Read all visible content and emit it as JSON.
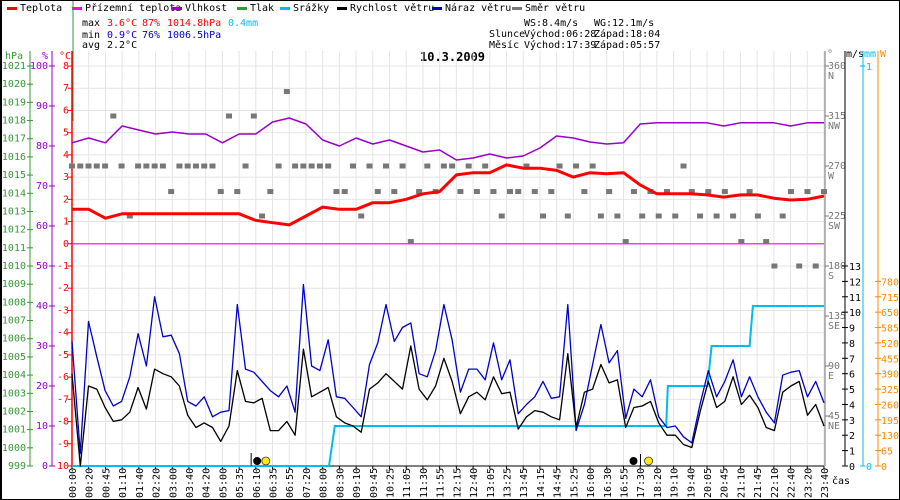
{
  "legend": [
    {
      "label": "Teplota",
      "color": "#ff0000"
    },
    {
      "label": "Přízemní teplota",
      "color": "#ff00ff"
    },
    {
      "label": "Vlhkost",
      "color": "#9900cc"
    },
    {
      "label": "Tlak",
      "color": "#339933"
    },
    {
      "label": "Srážky",
      "color": "#00bbee"
    },
    {
      "label": "Rychlost větru",
      "color": "#000000"
    },
    {
      "label": "Náraz větru",
      "color": "#0000cc"
    },
    {
      "label": "Směr větru",
      "color": "#777777"
    }
  ],
  "stats": {
    "max_label": "max",
    "max": {
      "temp": "3.6°C",
      "hum": "87%",
      "press": "1014.8hPa",
      "rain": "0.4mm"
    },
    "min_label": "min",
    "min": {
      "temp": "0.9°C",
      "hum": "76%",
      "press": "1006.5hPa"
    },
    "avg_label": "avg",
    "avg": {
      "temp": "2.2°C"
    }
  },
  "astro": {
    "ws": "WS:8.4m/s",
    "wg": "WG:12.1m/s",
    "sun_label": "Slunce",
    "sunrise": "Východ:06:28",
    "sunset": "Západ:18:04",
    "moon_label": "Měsíc",
    "moonrise": "Východ:17:39",
    "moonset": "Západ:05:57"
  },
  "chart_data": {
    "type": "line",
    "title": "10.3.2009",
    "xlabel": "čas",
    "x_ticks": [
      "00:00",
      "00:20",
      "00:45",
      "01:10",
      "01:40",
      "02:20",
      "03:00",
      "03:40",
      "04:20",
      "05:00",
      "05:35",
      "06:10",
      "06:35",
      "06:55",
      "07:20",
      "08:00",
      "08:30",
      "09:10",
      "09:45",
      "10:25",
      "11:05",
      "11:30",
      "11:55",
      "12:15",
      "12:40",
      "13:05",
      "13:25",
      "13:45",
      "14:15",
      "14:45",
      "15:25",
      "16:00",
      "16:30",
      "16:55",
      "17:30",
      "18:20",
      "19:10",
      "19:40",
      "20:05",
      "20:45",
      "21:10",
      "21:45",
      "22:10",
      "22:40",
      "23:20",
      "23:40"
    ],
    "axes": {
      "hpa": {
        "unit": "hPa",
        "range": [
          999,
          1021
        ],
        "ticks": [
          999,
          1000,
          1001,
          1002,
          1003,
          1004,
          1005,
          1006,
          1007,
          1008,
          1009,
          1010,
          1011,
          1012,
          1013,
          1014,
          1015,
          1016,
          1017,
          1018,
          1019,
          1020,
          1021
        ]
      },
      "humidity": {
        "unit": "%",
        "range": [
          0,
          100
        ],
        "ticks": [
          0,
          10,
          20,
          30,
          40,
          50,
          60,
          70,
          80,
          90,
          100
        ]
      },
      "temp": {
        "unit": "°C",
        "range": [
          -10,
          8
        ],
        "ticks": [
          -10,
          -9,
          -8,
          -7,
          -6,
          -5,
          -4,
          -3,
          -2,
          -1,
          0,
          1,
          2,
          3,
          4,
          5,
          6,
          7,
          8
        ]
      },
      "direction": {
        "unit": "°",
        "range": [
          0,
          360
        ],
        "ticks": [
          {
            "v": 45,
            "c": "NE"
          },
          {
            "v": 90,
            "c": "E"
          },
          {
            "v": 135,
            "c": "SE"
          },
          {
            "v": 180,
            "c": "S"
          },
          {
            "v": 225,
            "c": "SW"
          },
          {
            "v": 270,
            "c": "W"
          },
          {
            "v": 315,
            "c": "NW"
          },
          {
            "v": 360,
            "c": "N"
          }
        ]
      },
      "wind": {
        "unit": "m/s",
        "range": [
          0,
          13
        ],
        "ticks": [
          0,
          1,
          2,
          3,
          4,
          5,
          6,
          7,
          8,
          9,
          10,
          11,
          12,
          13
        ]
      },
      "rain": {
        "unit": "mm",
        "range": [
          0,
          1
        ],
        "ticks": [
          0,
          1
        ]
      },
      "radiation": {
        "unit": "W",
        "range": [
          0,
          845
        ],
        "ticks": [
          0,
          65,
          130,
          195,
          260,
          325,
          390,
          455,
          520,
          585,
          650,
          715,
          780
        ]
      }
    },
    "series": [
      {
        "name": "Teplota",
        "unit": "°C",
        "color": "#ff0000",
        "values": [
          1.55,
          1.55,
          1.15,
          1.35,
          1.35,
          1.35,
          1.35,
          1.35,
          1.35,
          1.35,
          1.35,
          1.05,
          0.95,
          0.85,
          1.25,
          1.65,
          1.55,
          1.55,
          1.85,
          1.85,
          2.0,
          2.25,
          2.35,
          3.1,
          3.2,
          3.2,
          3.55,
          3.4,
          3.4,
          3.3,
          3.0,
          3.2,
          3.15,
          3.2,
          2.65,
          2.25,
          2.25,
          2.25,
          2.2,
          2.1,
          2.2,
          2.2,
          2.05,
          1.97,
          2.0,
          2.15
        ]
      },
      {
        "name": "Přízemní teplota",
        "unit": "°C",
        "color": "#ff00ff",
        "values": [
          0,
          0,
          0,
          0,
          0,
          0,
          0,
          0,
          0,
          0,
          0,
          0,
          0,
          0,
          0,
          0,
          0,
          0,
          0,
          0,
          0,
          0,
          0,
          0,
          0,
          0,
          0,
          0,
          0,
          0,
          0,
          0,
          0,
          0,
          0,
          0,
          0,
          0,
          0,
          0,
          0,
          0,
          0,
          0,
          0,
          0
        ]
      },
      {
        "name": "Vlhkost",
        "unit": "%",
        "color": "#9900cc",
        "values": [
          80.8,
          82,
          80.8,
          85,
          84,
          83,
          83.5,
          83,
          83,
          80.8,
          83,
          83,
          86,
          87,
          85.5,
          81.5,
          80,
          82,
          80.5,
          81.5,
          80,
          78.5,
          79,
          76.5,
          77,
          78,
          77,
          77.5,
          79.5,
          82.5,
          82,
          81,
          80.5,
          80.8,
          85.5,
          85.8,
          85.8,
          85.8,
          85.8,
          85,
          85.8,
          85.8,
          85.8,
          85,
          85.8,
          85.8
        ]
      },
      {
        "name": "Rychlost větru",
        "unit": "m/s",
        "color": "#000000",
        "values": [
          6.0,
          0,
          5.2,
          5.0,
          3.8,
          2.9,
          3.0,
          3.5,
          5.1,
          3.7,
          6.3,
          6.0,
          5.8,
          5.2,
          3.3,
          2.5,
          2.8,
          2.5,
          1.6,
          2.6,
          6.2,
          4.2,
          4.1,
          4.4,
          2.3,
          2.3,
          2.9,
          2.0,
          7.6,
          4.5,
          4.8,
          5.1,
          3.2,
          2.8,
          2.6,
          2.2,
          5.0,
          5.4,
          6.0,
          5.5,
          5.0,
          7.8,
          5.0,
          4.3,
          5.2,
          7.0,
          5.5,
          3.4,
          4.5,
          4.8,
          4.3,
          5.8,
          4.7,
          4.8,
          2.4,
          3.2,
          3.6,
          3.5,
          3.2,
          3.0,
          7.3,
          2.5,
          4.8,
          5.0,
          6.6,
          5.4,
          5.6,
          2.5,
          3.8,
          3.9,
          4.2,
          2.8,
          2.0,
          2.0,
          1.4,
          1.2,
          3.5,
          5.5,
          3.8,
          4.2,
          5.8,
          4.0,
          4.6,
          3.8,
          2.5,
          2.3,
          4.8,
          5.2,
          5.5,
          3.3,
          4.0,
          2.6
        ]
      },
      {
        "name": "Náraz větru",
        "unit": "m/s",
        "color": "#0000cc",
        "values": [
          8.1,
          0.8,
          9.4,
          7.1,
          4.9,
          3.9,
          4.2,
          5.8,
          8.6,
          6.5,
          11.0,
          8.4,
          8.5,
          7.3,
          4.2,
          3.9,
          4.5,
          3.2,
          3.5,
          3.6,
          10.5,
          6.3,
          6.1,
          5.5,
          4.9,
          4.5,
          5.2,
          3.5,
          11.8,
          6.5,
          6.2,
          8.2,
          4.5,
          4.4,
          3.8,
          3.2,
          6.6,
          8.0,
          10.5,
          8.1,
          9.0,
          9.3,
          6.0,
          5.8,
          7.5,
          10.5,
          8.2,
          4.8,
          6.3,
          6.3,
          5.6,
          8.0,
          5.6,
          6.9,
          3.4,
          4.0,
          4.5,
          5.5,
          4.4,
          4.5,
          10.5,
          2.3,
          4.0,
          6.6,
          9.2,
          6.7,
          7.5,
          3.1,
          5.0,
          4.5,
          5.6,
          3.2,
          2.5,
          2.6,
          1.9,
          1.5,
          4.0,
          6.2,
          4.5,
          5.5,
          6.9,
          4.5,
          5.8,
          4.5,
          3.5,
          2.8,
          5.9,
          6.1,
          6.2,
          4.5,
          5.5,
          4.1
        ]
      },
      {
        "name": "Směr větru",
        "unit": "°",
        "color": "#777777",
        "values": [
          270,
          270,
          270,
          270,
          270,
          315,
          270,
          225,
          270,
          270,
          270,
          270,
          247,
          270,
          270,
          270,
          270,
          270,
          247,
          315,
          247,
          270,
          315,
          225,
          247,
          270,
          337,
          270,
          270,
          270,
          270,
          270,
          247,
          247,
          270,
          225,
          270,
          247,
          270,
          247,
          270,
          202,
          247,
          270,
          247,
          270,
          270,
          247,
          270,
          247,
          270,
          247,
          225,
          247,
          247,
          270,
          247,
          225,
          247,
          270,
          225,
          270,
          247,
          270,
          225,
          247,
          225,
          202,
          247,
          225,
          247,
          225,
          247,
          225,
          270,
          247,
          225,
          247,
          225,
          247,
          225,
          202,
          247,
          225,
          202,
          180,
          225,
          247,
          180,
          247,
          180,
          247
        ]
      },
      {
        "name": "Srážky",
        "unit": "mm",
        "color": "#00bbee",
        "steps": [
          [
            0,
            0
          ],
          [
            31.1,
            0
          ],
          [
            31.8,
            0.1
          ],
          [
            71.9,
            0.1
          ],
          [
            72.1,
            0.2
          ],
          [
            76.9,
            0.2
          ],
          [
            77.4,
            0.3
          ],
          [
            82.0,
            0.3
          ],
          [
            82.4,
            0.4
          ],
          [
            91,
            0.4
          ]
        ]
      }
    ],
    "markers": [
      {
        "type": "moonset",
        "at_tick": 10.9
      },
      {
        "type": "sunrise",
        "at_tick": 11.6
      },
      {
        "type": "moonrise",
        "at_tick": 33.6
      },
      {
        "type": "sunset",
        "at_tick": 34.5
      }
    ],
    "grid": true
  }
}
